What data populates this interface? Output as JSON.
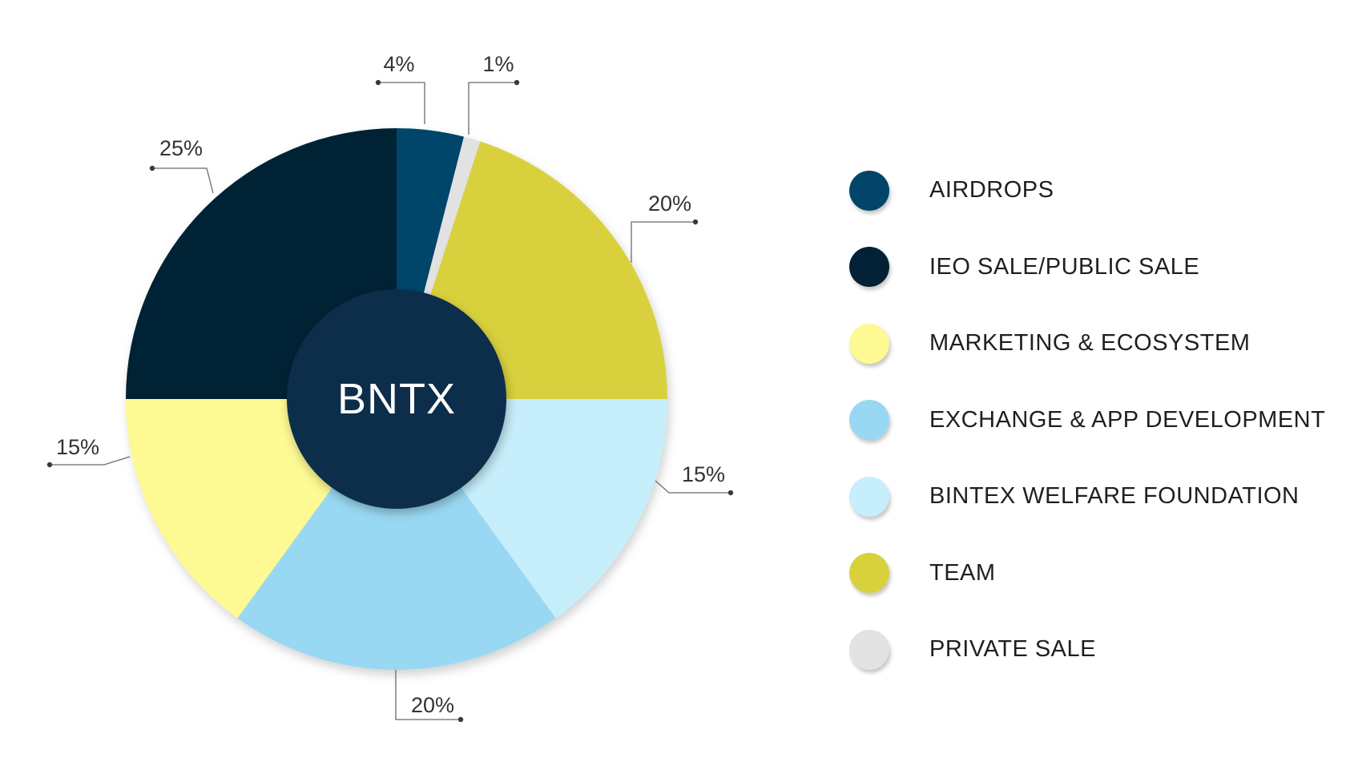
{
  "chart_data": {
    "type": "pie",
    "center_label": "BNTX",
    "slices": [
      {
        "name": "AIRDROPS",
        "value": 4,
        "label": "4%",
        "color": "#03446b"
      },
      {
        "name": "PRIVATE SALE",
        "value": 1,
        "label": "1%",
        "color": "#e2e2e2"
      },
      {
        "name": "TEAM",
        "value": 20,
        "label": "20%",
        "color": "#d8d13c"
      },
      {
        "name": "BINTEX WELFARE FOUNDATION",
        "value": 15,
        "label": "15%",
        "color": "#c6eefb"
      },
      {
        "name": "EXCHANGE & APP DEVELOPMENT",
        "value": 20,
        "label": "20%",
        "color": "#99d8f2"
      },
      {
        "name": "MARKETING & ECOSYSTEM",
        "value": 15,
        "label": "15%",
        "color": "#fdf993"
      },
      {
        "name": "IEO SALE/PUBLIC SALE",
        "value": 25,
        "label": "25%",
        "color": "#022136"
      }
    ],
    "legend_position": "right",
    "center_color": "#0e2f4b"
  },
  "legend": {
    "items": [
      {
        "label": "AIRDROPS",
        "color": "#03446b"
      },
      {
        "label": "IEO SALE/PUBLIC SALE",
        "color": "#022136"
      },
      {
        "label": "MARKETING & ECOSYSTEM",
        "color": "#fdf993"
      },
      {
        "label": "EXCHANGE & APP DEVELOPMENT",
        "color": "#99d8f2"
      },
      {
        "label": "BINTEX WELFARE FOUNDATION",
        "color": "#c6eefb"
      },
      {
        "label": "TEAM",
        "color": "#d8d13c"
      },
      {
        "label": "PRIVATE SALE",
        "color": "#e2e2e2"
      }
    ]
  }
}
